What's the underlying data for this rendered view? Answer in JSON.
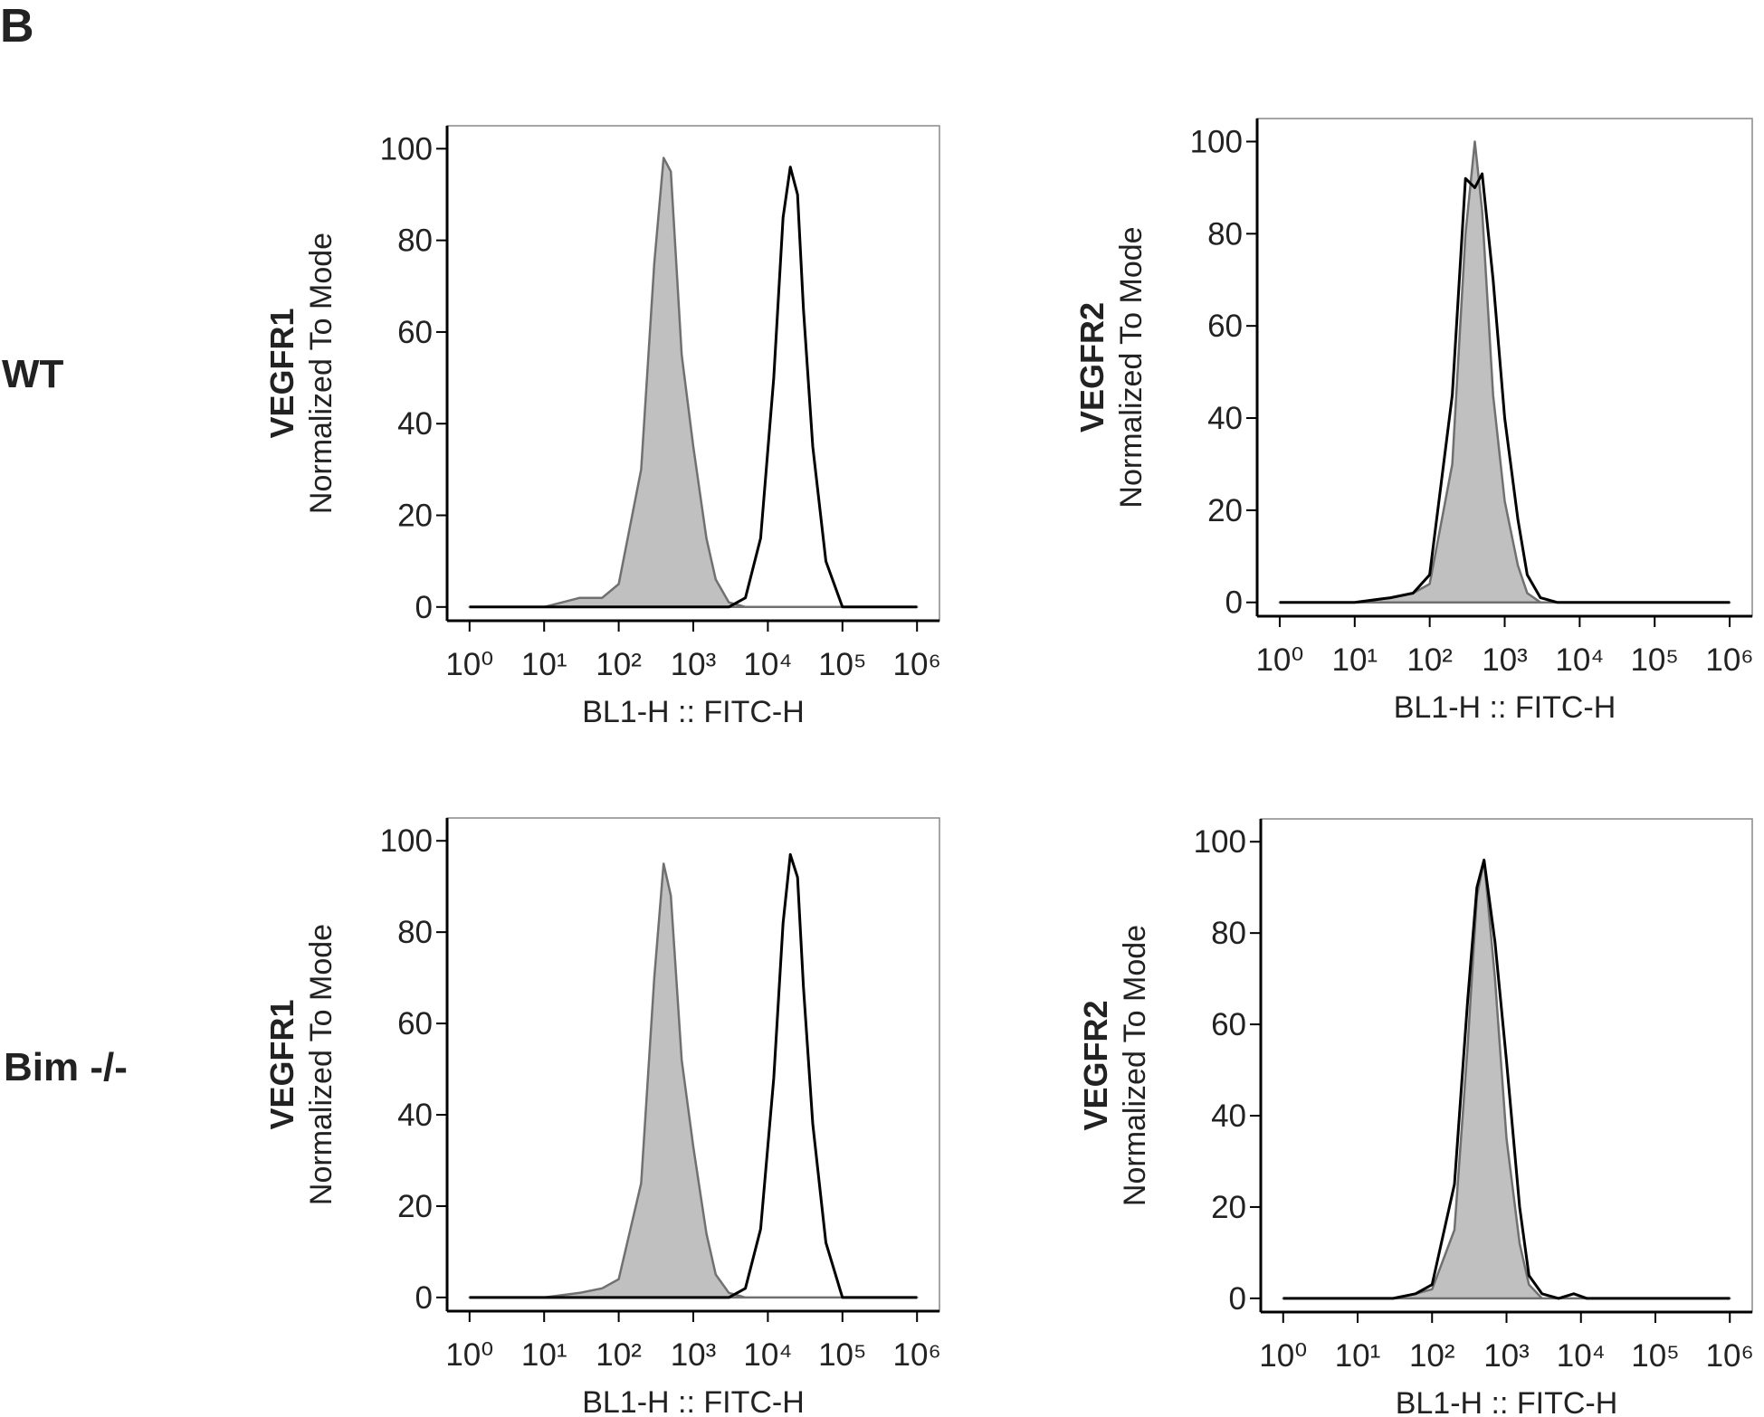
{
  "figure": {
    "label": "B",
    "rows": [
      "WT",
      "Bim -/-"
    ]
  },
  "chart_data": [
    {
      "type": "area",
      "title": "VEGFR1",
      "ylabel": "Normalized To Mode",
      "xlabel": "BL1-H :: FITC-H",
      "x": [
        1,
        10,
        30,
        60,
        100,
        200,
        300,
        400,
        500,
        700,
        1000,
        1500,
        2000,
        3000,
        5000,
        8000,
        12000,
        16000,
        20000,
        25000,
        30000,
        40000,
        60000,
        100000,
        1000000
      ],
      "series": [
        {
          "color": "#707070",
          "fill": "#c0c0c0",
          "values": [
            0,
            0,
            2,
            2,
            5,
            30,
            75,
            98,
            95,
            55,
            35,
            15,
            6,
            1,
            0,
            0,
            0,
            0,
            0,
            0,
            0,
            0,
            0,
            0,
            0
          ]
        },
        {
          "color": "#000000",
          "values": [
            0,
            0,
            0,
            0,
            0,
            0,
            0,
            0,
            0,
            0,
            0,
            0,
            0,
            0,
            2,
            15,
            50,
            85,
            96,
            90,
            65,
            35,
            10,
            0,
            0
          ]
        }
      ],
      "log_x": true,
      "xlim": [
        0.5,
        2000000
      ],
      "xticks": [
        {
          "value": 1,
          "label": "10⁰"
        },
        {
          "value": 10,
          "label": "10¹"
        },
        {
          "value": 100,
          "label": "10²"
        },
        {
          "value": 1000,
          "label": "10³"
        },
        {
          "value": 10000,
          "label": "10⁴"
        },
        {
          "value": 100000,
          "label": "10⁵"
        },
        {
          "value": 1000000,
          "label": "10⁶"
        }
      ],
      "ylim": [
        -3,
        105
      ],
      "yticks": [
        0,
        20,
        40,
        60,
        80,
        100
      ]
    },
    {
      "type": "area",
      "title": "VEGFR2",
      "ylabel": "Normalized To Mode",
      "xlabel": "BL1-H :: FITC-H",
      "x": [
        1,
        10,
        30,
        60,
        100,
        200,
        300,
        400,
        500,
        700,
        1000,
        1500,
        2000,
        3000,
        5000,
        8000,
        12000,
        16000,
        20000,
        25000,
        30000,
        40000,
        60000,
        100000,
        1000000
      ],
      "series": [
        {
          "color": "#707070",
          "fill": "#c0c0c0",
          "values": [
            0,
            0,
            1,
            2,
            4,
            30,
            80,
            100,
            85,
            45,
            22,
            8,
            2,
            0,
            0,
            0,
            0,
            0,
            0,
            0,
            0,
            0,
            0,
            0,
            0
          ]
        },
        {
          "color": "#000000",
          "values": [
            0,
            0,
            1,
            2,
            6,
            45,
            92,
            90,
            93,
            70,
            40,
            18,
            6,
            1,
            0,
            0,
            0,
            0,
            0,
            0,
            0,
            0,
            0,
            0,
            0
          ]
        }
      ],
      "log_x": true,
      "xlim": [
        0.5,
        2000000
      ],
      "xticks": [
        {
          "value": 1,
          "label": "10⁰"
        },
        {
          "value": 10,
          "label": "10¹"
        },
        {
          "value": 100,
          "label": "10²"
        },
        {
          "value": 1000,
          "label": "10³"
        },
        {
          "value": 10000,
          "label": "10⁴"
        },
        {
          "value": 100000,
          "label": "10⁵"
        },
        {
          "value": 1000000,
          "label": "10⁶"
        }
      ],
      "ylim": [
        -3,
        105
      ],
      "yticks": [
        0,
        20,
        40,
        60,
        80,
        100
      ]
    },
    {
      "type": "area",
      "title": "VEGFR1",
      "ylabel": "Normalized To Mode",
      "xlabel": "BL1-H :: FITC-H",
      "x": [
        1,
        10,
        30,
        60,
        100,
        200,
        300,
        400,
        500,
        700,
        1000,
        1500,
        2000,
        3000,
        5000,
        8000,
        12000,
        16000,
        20000,
        25000,
        30000,
        40000,
        60000,
        100000,
        1000000
      ],
      "series": [
        {
          "color": "#707070",
          "fill": "#c0c0c0",
          "values": [
            0,
            0,
            1,
            2,
            4,
            25,
            70,
            95,
            88,
            52,
            33,
            14,
            5,
            1,
            0,
            0,
            0,
            0,
            0,
            0,
            0,
            0,
            0,
            0,
            0
          ]
        },
        {
          "color": "#000000",
          "values": [
            0,
            0,
            0,
            0,
            0,
            0,
            0,
            0,
            0,
            0,
            0,
            0,
            0,
            0,
            2,
            15,
            48,
            82,
            97,
            92,
            68,
            38,
            12,
            0,
            0
          ]
        }
      ],
      "log_x": true,
      "xlim": [
        0.5,
        2000000
      ],
      "xticks": [
        {
          "value": 1,
          "label": "10⁰"
        },
        {
          "value": 10,
          "label": "10¹"
        },
        {
          "value": 100,
          "label": "10²"
        },
        {
          "value": 1000,
          "label": "10³"
        },
        {
          "value": 10000,
          "label": "10⁴"
        },
        {
          "value": 100000,
          "label": "10⁵"
        },
        {
          "value": 1000000,
          "label": "10⁶"
        }
      ],
      "ylim": [
        -3,
        105
      ],
      "yticks": [
        0,
        20,
        40,
        60,
        80,
        100
      ]
    },
    {
      "type": "area",
      "title": "VEGFR2",
      "ylabel": "Normalized To Mode",
      "xlabel": "BL1-H :: FITC-H",
      "x": [
        1,
        10,
        30,
        60,
        100,
        200,
        300,
        400,
        500,
        700,
        1000,
        1500,
        2000,
        3000,
        5000,
        8000,
        12000,
        16000,
        20000,
        25000,
        30000,
        40000,
        60000,
        100000,
        1000000
      ],
      "series": [
        {
          "color": "#707070",
          "fill": "#c0c0c0",
          "values": [
            0,
            0,
            0,
            1,
            2,
            15,
            55,
            88,
            96,
            70,
            35,
            12,
            3,
            0,
            0,
            0,
            0,
            0,
            0,
            0,
            0,
            0,
            0,
            0,
            0
          ]
        },
        {
          "color": "#000000",
          "values": [
            0,
            0,
            0,
            1,
            3,
            25,
            65,
            90,
            96,
            78,
            52,
            20,
            5,
            1,
            0,
            1,
            0,
            0,
            0,
            0,
            0,
            0,
            0,
            0,
            0
          ]
        }
      ],
      "log_x": true,
      "xlim": [
        0.5,
        2000000
      ],
      "xticks": [
        {
          "value": 1,
          "label": "10⁰"
        },
        {
          "value": 10,
          "label": "10¹"
        },
        {
          "value": 100,
          "label": "10²"
        },
        {
          "value": 1000,
          "label": "10³"
        },
        {
          "value": 10000,
          "label": "10⁴"
        },
        {
          "value": 100000,
          "label": "10⁵"
        },
        {
          "value": 1000000,
          "label": "10⁶"
        }
      ],
      "ylim": [
        -3,
        105
      ],
      "yticks": [
        0,
        20,
        40,
        60,
        80,
        100
      ]
    }
  ]
}
